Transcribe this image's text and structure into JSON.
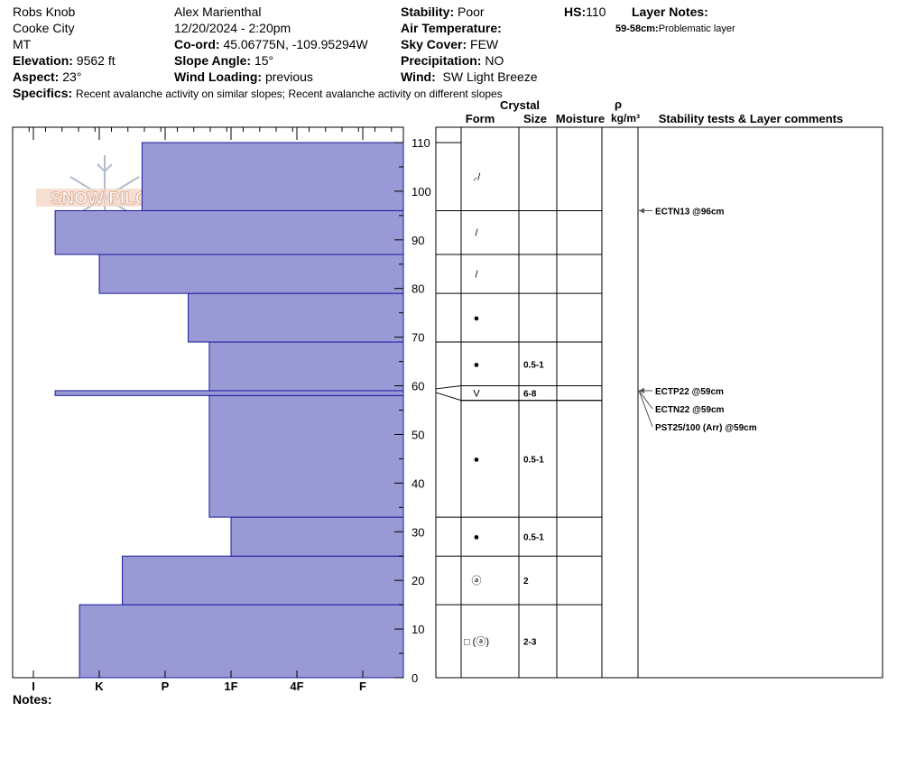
{
  "header": {
    "location": "Robs Knob",
    "region": "Cooke City",
    "state": "MT",
    "elevation_label": "Elevation:",
    "elevation_value": "9562 ft",
    "aspect_label": "Aspect:",
    "aspect_value": "23°",
    "observer": "Alex Marienthal",
    "datetime": "12/20/2024 - 2:20pm",
    "coord_label": "Co-ord:",
    "coord_value": "45.06775N, -109.95294W",
    "slope_label": "Slope Angle:",
    "slope_value": "15°",
    "wind_loading_label": "Wind Loading:",
    "wind_loading_value": "previous",
    "stability_label": "Stability:",
    "stability_value": "Poor",
    "air_temp_label": "Air Temperature:",
    "sky_label": "Sky Cover:",
    "sky_value": "FEW",
    "precip_label": "Precipitation:",
    "precip_value": "NO",
    "wind_label": "Wind:",
    "wind_value": "SW Light Breeze",
    "hs_label": "HS:",
    "hs_value": "110",
    "layer_notes_label": "Layer Notes:",
    "layer_notes_range": "59-58cm:",
    "layer_notes_text": "Problematic layer",
    "specifics_label": "Specifics:",
    "specifics_value": "Recent avalanche activity on similar slopes; Recent avalanche activity on different slopes"
  },
  "logo_text": "SNOW PILOT",
  "notes_label": "Notes:",
  "columns": {
    "crystal": "Crystal",
    "form": "Form",
    "size": "Size",
    "moisture": "Moisture",
    "rho": "ρ",
    "density_unit": "kg/m³",
    "tests_comments": "Stability tests & Layer comments"
  },
  "chart_data": {
    "type": "bar",
    "orientation": "horizontal",
    "description_x": "hand hardness",
    "x_categories": [
      "I",
      "K",
      "P",
      "1F",
      "4F",
      "F"
    ],
    "y_range": [
      0,
      110
    ],
    "y_ticks": [
      0,
      10,
      20,
      30,
      40,
      50,
      60,
      70,
      80,
      90,
      100,
      110
    ],
    "bar_color": "#9999d6",
    "layers": [
      {
        "bottom": 0,
        "top": 15,
        "hardness": 1.7
      },
      {
        "bottom": 15,
        "top": 25,
        "hardness": 2.35
      },
      {
        "bottom": 25,
        "top": 33,
        "hardness": 4.0
      },
      {
        "bottom": 33,
        "top": 58,
        "hardness": 3.67
      },
      {
        "bottom": 58,
        "top": 59,
        "hardness": 1.33
      },
      {
        "bottom": 59,
        "top": 69,
        "hardness": 3.67
      },
      {
        "bottom": 69,
        "top": 79,
        "hardness": 3.35
      },
      {
        "bottom": 79,
        "top": 87,
        "hardness": 2.0
      },
      {
        "bottom": 87,
        "top": 96,
        "hardness": 1.33
      },
      {
        "bottom": 96,
        "top": 110,
        "hardness": 2.65
      }
    ],
    "layer_table": [
      {
        "bottom": 0,
        "top": 15,
        "form": "□ (ⓐ)",
        "size": "2-3"
      },
      {
        "bottom": 15,
        "top": 25,
        "form": "ⓐ",
        "size": "2"
      },
      {
        "bottom": 25,
        "top": 33,
        "form": "●",
        "size": "0.5-1"
      },
      {
        "bottom": 33,
        "top": 57,
        "form": "●",
        "size": "0.5-1"
      },
      {
        "bottom": 57,
        "top": 60,
        "form": "V",
        "size": "6-8"
      },
      {
        "bottom": 60,
        "top": 69,
        "form": "●",
        "size": "0.5-1"
      },
      {
        "bottom": 69,
        "top": 79,
        "form": "●",
        "size": ""
      },
      {
        "bottom": 79,
        "top": 87,
        "form": "/",
        "size": ""
      },
      {
        "bottom": 87,
        "top": 96,
        "form": "/",
        "size": ""
      },
      {
        "bottom": 96,
        "top": 110,
        "form": "⸝/",
        "size": ""
      }
    ],
    "stability_tests": [
      {
        "depth": 96,
        "text": "ECTN13 @96cm"
      },
      {
        "depth": 59,
        "text": "ECTP22 @59cm"
      },
      {
        "depth": 59,
        "text": "ECTN22 @59cm"
      },
      {
        "depth": 59,
        "text": "PST25/100 (Arr) @59cm"
      }
    ]
  }
}
